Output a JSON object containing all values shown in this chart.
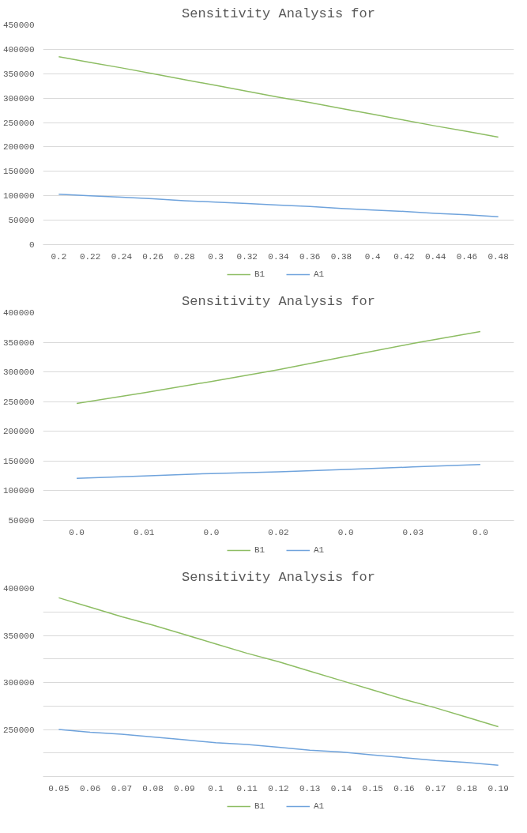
{
  "chart_data": [
    {
      "type": "line",
      "title": "Sensitivity Analysis for",
      "categories": [
        "0.2",
        "0.22",
        "0.24",
        "0.26",
        "0.28",
        "0.3",
        "0.32",
        "0.34",
        "0.36",
        "0.38",
        "0.4",
        "0.42",
        "0.44",
        "0.46",
        "0.48"
      ],
      "series": [
        {
          "name": "B1",
          "color": "#8dbd63",
          "values": [
            385000,
            373000,
            362000,
            350000,
            338000,
            326000,
            314000,
            302000,
            291000,
            279000,
            267000,
            255000,
            243000,
            232000,
            220000
          ]
        },
        {
          "name": "A1",
          "color": "#6fa3dc",
          "values": [
            103000,
            100000,
            97000,
            94000,
            90000,
            87000,
            84000,
            81000,
            78000,
            74000,
            71000,
            68000,
            64000,
            61000,
            57000
          ]
        }
      ],
      "ylim": [
        0,
        450000
      ],
      "yticks": [
        0,
        50000,
        100000,
        150000,
        200000,
        250000,
        300000,
        350000,
        400000,
        450000
      ],
      "grid": "y",
      "legend": "bottom",
      "marker": "none",
      "line_style": "solid"
    },
    {
      "type": "line",
      "title": "Sensitivity Analysis for",
      "categories": [
        "0.0",
        "0.01",
        "0.0",
        "0.02",
        "0.0",
        "0.03",
        "0.0"
      ],
      "series": [
        {
          "name": "B1",
          "color": "#8dbd63",
          "values": [
            247000,
            265000,
            284000,
            304000,
            326000,
            348000,
            368000
          ]
        },
        {
          "name": "A1",
          "color": "#6fa3dc",
          "values": [
            121000,
            125000,
            129000,
            132000,
            136000,
            140000,
            144000
          ]
        }
      ],
      "ylim": [
        50000,
        400000
      ],
      "yticks": [
        50000,
        100000,
        150000,
        200000,
        250000,
        300000,
        350000,
        400000
      ],
      "grid": "y",
      "legend": "bottom",
      "marker": "none",
      "line_style": "solid"
    },
    {
      "type": "line",
      "title": "Sensitivity Analysis for",
      "categories": [
        "0.05",
        "0.06",
        "0.07",
        "0.08",
        "0.09",
        "0.1",
        "0.11",
        "0.12",
        "0.13",
        "0.14",
        "0.15",
        "0.16",
        "0.17",
        "0.18",
        "0.19"
      ],
      "series": [
        {
          "name": "B1",
          "color": "#8dbd63",
          "values": [
            390000,
            380000,
            370000,
            361000,
            351000,
            341000,
            331000,
            322000,
            312000,
            302000,
            292000,
            282000,
            273000,
            263000,
            253000
          ]
        },
        {
          "name": "A1",
          "color": "#6fa3dc",
          "values": [
            250000,
            247000,
            245000,
            242000,
            239000,
            236000,
            234000,
            231000,
            228000,
            226000,
            223000,
            220000,
            217000,
            215000,
            212000
          ]
        }
      ],
      "ylim": [
        200000,
        400000
      ],
      "yticks": [
        {
          "value": 200000,
          "label": null
        },
        {
          "value": 225000,
          "label": null
        },
        250000,
        {
          "value": 275000,
          "label": null
        },
        300000,
        {
          "value": 325000,
          "label": null
        },
        350000,
        {
          "value": 375000,
          "label": null
        },
        400000
      ],
      "grid": "y",
      "legend": "bottom",
      "marker": "none",
      "line_style": "solid"
    }
  ]
}
